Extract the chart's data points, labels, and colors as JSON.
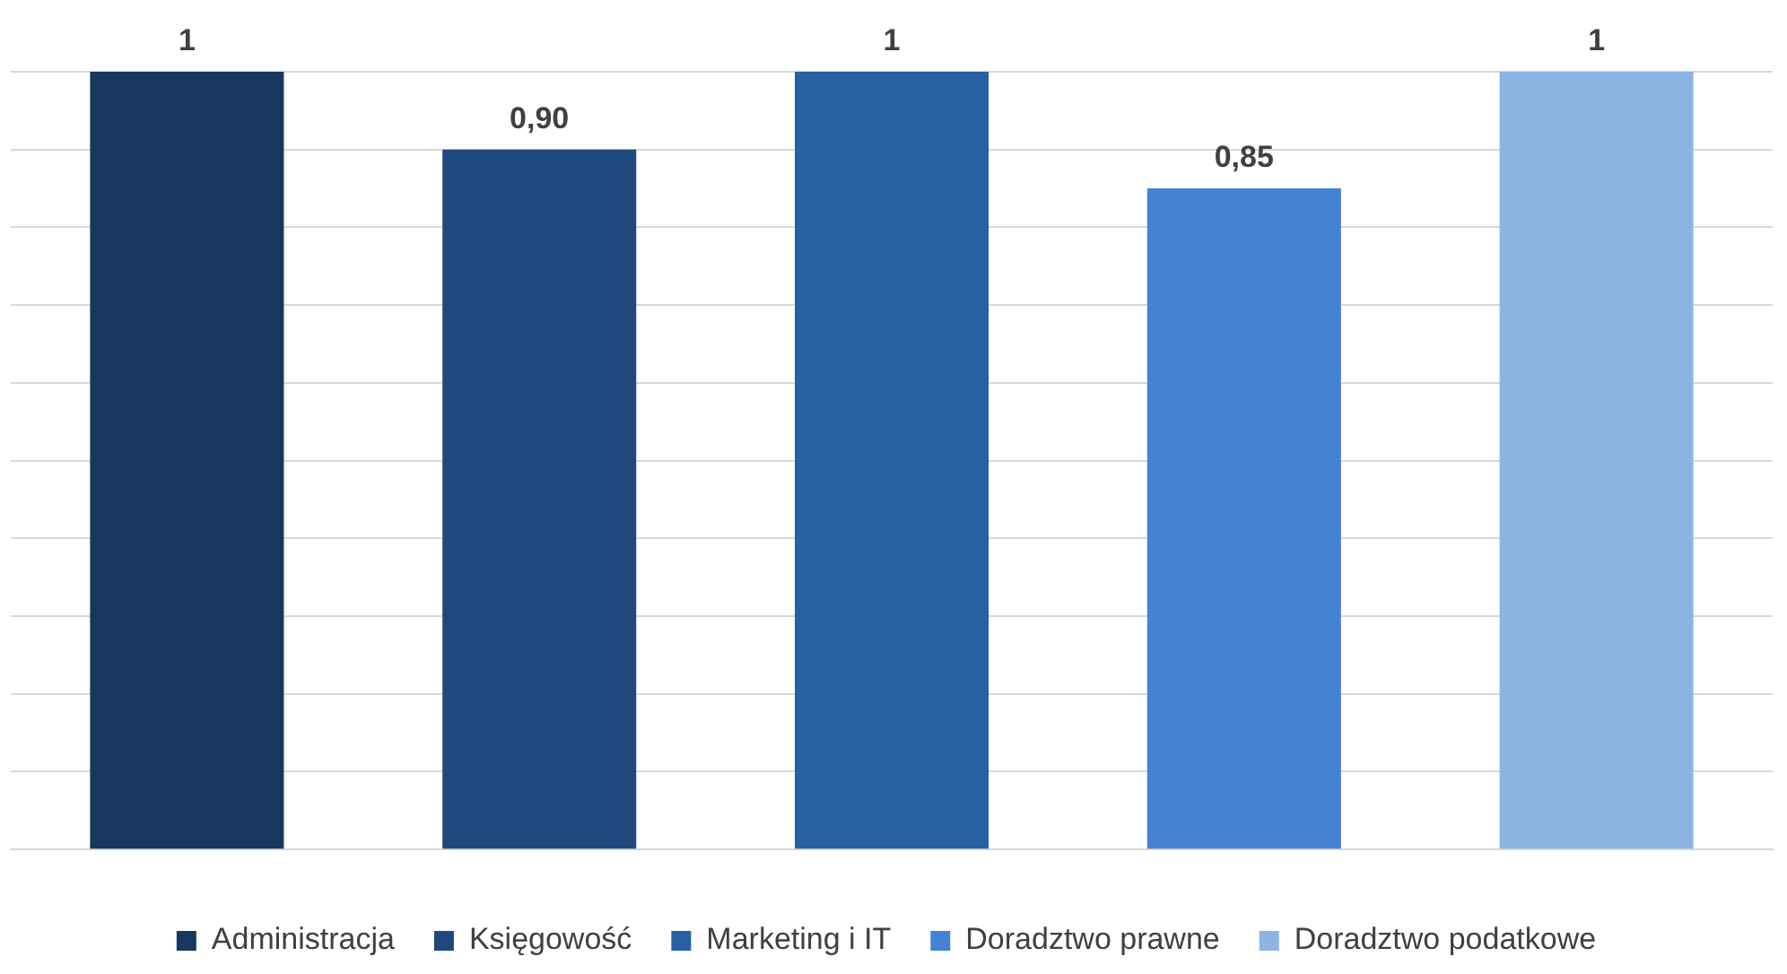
{
  "chart_data": {
    "type": "bar",
    "categories": [
      null,
      null,
      null,
      null,
      null
    ],
    "stacked": true,
    "ylim": [
      0,
      1
    ],
    "yticks": [
      {
        "value": 0,
        "label": null
      },
      {
        "value": 0.1,
        "label": null
      },
      {
        "value": 0.2,
        "label": null
      },
      {
        "value": 0.3,
        "label": null
      },
      {
        "value": 0.4,
        "label": null
      },
      {
        "value": 0.5,
        "label": null
      },
      {
        "value": 0.6,
        "label": null
      },
      {
        "value": 0.7,
        "label": null
      },
      {
        "value": 0.8,
        "label": null
      },
      {
        "value": 0.9,
        "label": null
      },
      {
        "value": 1,
        "label": null
      }
    ],
    "grid": "y",
    "legend": "bottom",
    "series": [
      {
        "name": "Administracja",
        "color": "#17375e",
        "values": [
          1,
          null,
          null,
          null,
          null
        ],
        "value_labels": [
          "1",
          null,
          null,
          null,
          null
        ]
      },
      {
        "name": "Księgowość",
        "color": "#1f497d",
        "values": [
          null,
          0.9,
          null,
          null,
          null
        ],
        "value_labels": [
          null,
          "0,90",
          null,
          null,
          null
        ]
      },
      {
        "name": "Marketing i IT",
        "color": "#2760a3",
        "values": [
          null,
          null,
          1,
          null,
          null
        ],
        "value_labels": [
          null,
          null,
          "1",
          null,
          null
        ]
      },
      {
        "name": "Doradztwo prawne",
        "color": "#4482d4",
        "values": [
          null,
          null,
          null,
          0.85,
          null
        ],
        "value_labels": [
          null,
          null,
          null,
          "0,85",
          null
        ]
      },
      {
        "name": "Doradztwo podatkowe",
        "color": "#8eb4e3",
        "values": [
          null,
          null,
          null,
          null,
          1
        ],
        "value_labels": [
          null,
          null,
          null,
          null,
          "1"
        ]
      }
    ]
  }
}
